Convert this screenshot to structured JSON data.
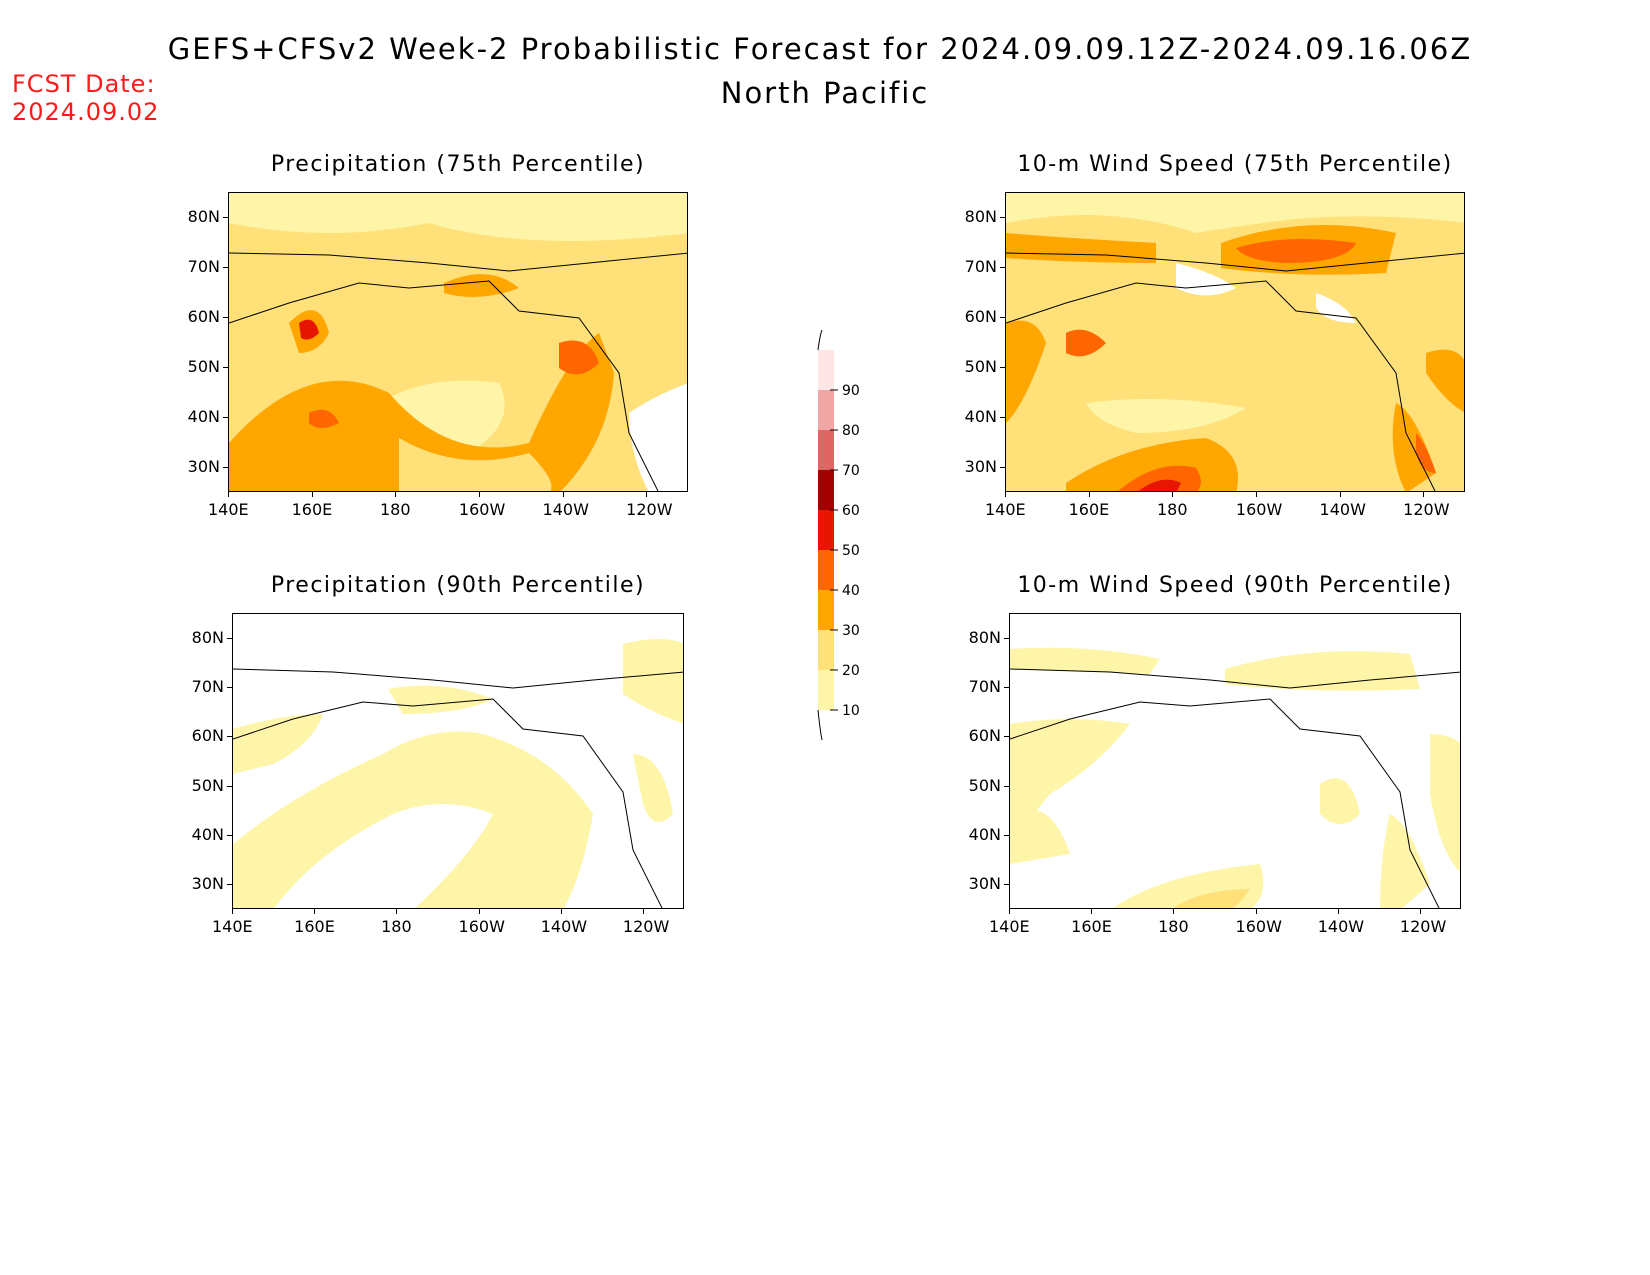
{
  "header": {
    "title_line1": "GEFS+CFSv2 Week-2 Probabilistic Forecast for 2024.09.09.12Z-2024.09.16.06Z",
    "title_line2": "North Pacific",
    "fcst_label": "FCST Date:",
    "fcst_date": "2024.09.02"
  },
  "colors": {
    "title_red": "#ff1a1a",
    "levels": [
      "#ffffff",
      "#fff5a8",
      "#ffe079",
      "#ffa600",
      "#ff6600",
      "#e61600",
      "#a50000",
      "#e06666",
      "#f2a5a5",
      "#ffe5e5"
    ]
  },
  "colorbar": {
    "labels": [
      "10",
      "20",
      "30",
      "40",
      "50",
      "60",
      "70",
      "80",
      "90"
    ]
  },
  "axes": {
    "x_ticks": [
      "140E",
      "160E",
      "180",
      "160W",
      "140W",
      "120W"
    ],
    "y_ticks": [
      "80N",
      "70N",
      "60N",
      "50N",
      "40N",
      "30N"
    ]
  },
  "panels": [
    {
      "id": "precip75",
      "title": "Precipitation (75th Percentile)"
    },
    {
      "id": "wind75",
      "title": "10-m Wind Speed (75th Percentile)"
    },
    {
      "id": "precip90",
      "title": "Precipitation (90th Percentile)"
    },
    {
      "id": "wind90",
      "title": "10-m Wind Speed (90th Percentile)"
    }
  ]
}
